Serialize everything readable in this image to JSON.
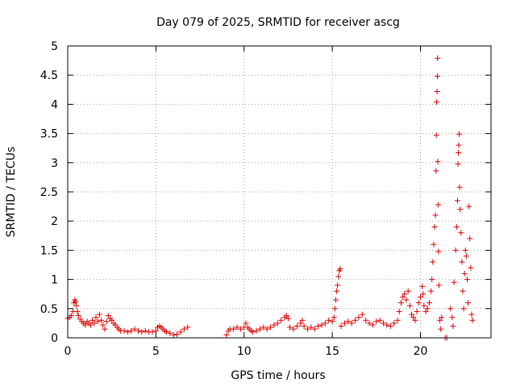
{
  "chart_data": {
    "type": "scatter",
    "title": "Day 079 of 2025, SRMTID for receiver ascg",
    "xlabel": "GPS time / hours",
    "ylabel": "SRMTID / TECUs",
    "xlim": [
      0,
      24
    ],
    "ylim": [
      0,
      5
    ],
    "xticks": [
      0,
      5,
      10,
      15,
      20
    ],
    "xtick_labels": [
      "0",
      "5",
      "10",
      "15",
      "20"
    ],
    "yticks": [
      0,
      0.5,
      1,
      1.5,
      2,
      2.5,
      3,
      3.5,
      4,
      4.5,
      5
    ],
    "ytick_labels": [
      "0",
      "0.5",
      "1",
      "1.5",
      "2",
      "2.5",
      "3",
      "3.5",
      "4",
      "4.5",
      "5"
    ],
    "grid": true,
    "marker": "+",
    "color": "#dd0000",
    "series": [
      {
        "name": "SRMTID",
        "points": [
          [
            0.0,
            0.33
          ],
          [
            0.1,
            0.35
          ],
          [
            0.2,
            0.38
          ],
          [
            0.3,
            0.45
          ],
          [
            0.35,
            0.6
          ],
          [
            0.4,
            0.65
          ],
          [
            0.45,
            0.62
          ],
          [
            0.5,
            0.55
          ],
          [
            0.55,
            0.45
          ],
          [
            0.6,
            0.38
          ],
          [
            0.7,
            0.32
          ],
          [
            0.8,
            0.28
          ],
          [
            0.9,
            0.25
          ],
          [
            1.0,
            0.22
          ],
          [
            1.1,
            0.28
          ],
          [
            1.2,
            0.25
          ],
          [
            1.3,
            0.22
          ],
          [
            1.4,
            0.3
          ],
          [
            1.5,
            0.25
          ],
          [
            1.6,
            0.35
          ],
          [
            1.7,
            0.28
          ],
          [
            1.8,
            0.4
          ],
          [
            1.9,
            0.3
          ],
          [
            2.0,
            0.22
          ],
          [
            2.1,
            0.15
          ],
          [
            2.2,
            0.28
          ],
          [
            2.3,
            0.38
          ],
          [
            2.4,
            0.33
          ],
          [
            2.5,
            0.3
          ],
          [
            2.6,
            0.25
          ],
          [
            2.7,
            0.22
          ],
          [
            2.8,
            0.18
          ],
          [
            2.9,
            0.15
          ],
          [
            3.0,
            0.12
          ],
          [
            3.2,
            0.12
          ],
          [
            3.4,
            0.1
          ],
          [
            3.6,
            0.12
          ],
          [
            3.8,
            0.15
          ],
          [
            4.0,
            0.12
          ],
          [
            4.2,
            0.1
          ],
          [
            4.4,
            0.12
          ],
          [
            4.6,
            0.1
          ],
          [
            4.8,
            0.1
          ],
          [
            5.0,
            0.12
          ],
          [
            5.1,
            0.18
          ],
          [
            5.2,
            0.2
          ],
          [
            5.3,
            0.18
          ],
          [
            5.4,
            0.15
          ],
          [
            5.5,
            0.12
          ],
          [
            5.6,
            0.1
          ],
          [
            5.8,
            0.08
          ],
          [
            6.0,
            0.05
          ],
          [
            6.2,
            0.06
          ],
          [
            6.4,
            0.1
          ],
          [
            6.6,
            0.15
          ],
          [
            6.8,
            0.18
          ],
          [
            9.0,
            0.05
          ],
          [
            9.1,
            0.12
          ],
          [
            9.2,
            0.15
          ],
          [
            9.4,
            0.15
          ],
          [
            9.6,
            0.18
          ],
          [
            9.8,
            0.15
          ],
          [
            10.0,
            0.18
          ],
          [
            10.1,
            0.25
          ],
          [
            10.2,
            0.18
          ],
          [
            10.3,
            0.15
          ],
          [
            10.4,
            0.12
          ],
          [
            10.5,
            0.1
          ],
          [
            10.7,
            0.12
          ],
          [
            10.9,
            0.15
          ],
          [
            11.1,
            0.18
          ],
          [
            11.3,
            0.15
          ],
          [
            11.5,
            0.18
          ],
          [
            11.7,
            0.22
          ],
          [
            11.9,
            0.25
          ],
          [
            12.1,
            0.3
          ],
          [
            12.3,
            0.35
          ],
          [
            12.4,
            0.38
          ],
          [
            12.5,
            0.33
          ],
          [
            12.6,
            0.18
          ],
          [
            12.8,
            0.15
          ],
          [
            13.0,
            0.2
          ],
          [
            13.2,
            0.25
          ],
          [
            13.3,
            0.3
          ],
          [
            13.4,
            0.2
          ],
          [
            13.6,
            0.15
          ],
          [
            13.8,
            0.18
          ],
          [
            14.0,
            0.15
          ],
          [
            14.2,
            0.2
          ],
          [
            14.4,
            0.22
          ],
          [
            14.6,
            0.25
          ],
          [
            14.8,
            0.3
          ],
          [
            15.0,
            0.28
          ],
          [
            15.1,
            0.35
          ],
          [
            15.15,
            0.5
          ],
          [
            15.2,
            0.65
          ],
          [
            15.25,
            0.8
          ],
          [
            15.3,
            0.9
          ],
          [
            15.35,
            1.05
          ],
          [
            15.4,
            1.15
          ],
          [
            15.45,
            1.18
          ],
          [
            15.5,
            0.2
          ],
          [
            15.7,
            0.25
          ],
          [
            15.9,
            0.28
          ],
          [
            16.1,
            0.25
          ],
          [
            16.3,
            0.3
          ],
          [
            16.5,
            0.35
          ],
          [
            16.7,
            0.4
          ],
          [
            16.9,
            0.3
          ],
          [
            17.1,
            0.25
          ],
          [
            17.3,
            0.22
          ],
          [
            17.5,
            0.28
          ],
          [
            17.7,
            0.3
          ],
          [
            17.9,
            0.25
          ],
          [
            18.1,
            0.22
          ],
          [
            18.3,
            0.2
          ],
          [
            18.5,
            0.25
          ],
          [
            18.7,
            0.3
          ],
          [
            18.8,
            0.45
          ],
          [
            18.9,
            0.6
          ],
          [
            19.0,
            0.7
          ],
          [
            19.1,
            0.75
          ],
          [
            19.2,
            0.65
          ],
          [
            19.3,
            0.8
          ],
          [
            19.4,
            0.55
          ],
          [
            19.5,
            0.4
          ],
          [
            19.6,
            0.35
          ],
          [
            19.7,
            0.3
          ],
          [
            19.8,
            0.45
          ],
          [
            19.9,
            0.6
          ],
          [
            20.0,
            0.7
          ],
          [
            20.1,
            0.88
          ],
          [
            20.15,
            0.75
          ],
          [
            20.2,
            0.55
          ],
          [
            20.3,
            0.45
          ],
          [
            20.4,
            0.5
          ],
          [
            20.5,
            0.6
          ],
          [
            20.6,
            0.8
          ],
          [
            20.65,
            1.0
          ],
          [
            20.7,
            1.3
          ],
          [
            20.75,
            1.6
          ],
          [
            20.8,
            1.9
          ],
          [
            20.85,
            2.1
          ],
          [
            20.88,
            2.86
          ],
          [
            20.9,
            3.47
          ],
          [
            20.92,
            4.04
          ],
          [
            20.94,
            4.22
          ],
          [
            20.96,
            4.48
          ],
          [
            20.97,
            4.79
          ],
          [
            20.98,
            3.02
          ],
          [
            21.0,
            2.28
          ],
          [
            21.02,
            1.48
          ],
          [
            21.05,
            0.9
          ],
          [
            21.1,
            0.3
          ],
          [
            21.15,
            0.15
          ],
          [
            21.2,
            0.35
          ],
          [
            21.4,
            0.0
          ],
          [
            21.5,
            0.0
          ],
          [
            21.7,
            0.5
          ],
          [
            21.8,
            0.35
          ],
          [
            21.85,
            0.2
          ],
          [
            21.9,
            0.95
          ],
          [
            22.0,
            1.5
          ],
          [
            22.05,
            1.9
          ],
          [
            22.1,
            2.35
          ],
          [
            22.13,
            2.98
          ],
          [
            22.15,
            3.17
          ],
          [
            22.17,
            3.3
          ],
          [
            22.2,
            3.49
          ],
          [
            22.22,
            2.58
          ],
          [
            22.25,
            2.2
          ],
          [
            22.3,
            1.8
          ],
          [
            22.35,
            1.3
          ],
          [
            22.4,
            0.8
          ],
          [
            22.45,
            0.5
          ],
          [
            22.5,
            1.1
          ],
          [
            22.55,
            1.5
          ],
          [
            22.6,
            1.4
          ],
          [
            22.65,
            1.0
          ],
          [
            22.7,
            0.6
          ],
          [
            22.75,
            2.25
          ],
          [
            22.8,
            1.7
          ],
          [
            22.85,
            1.2
          ],
          [
            22.9,
            0.4
          ],
          [
            22.95,
            0.3
          ]
        ]
      }
    ]
  }
}
